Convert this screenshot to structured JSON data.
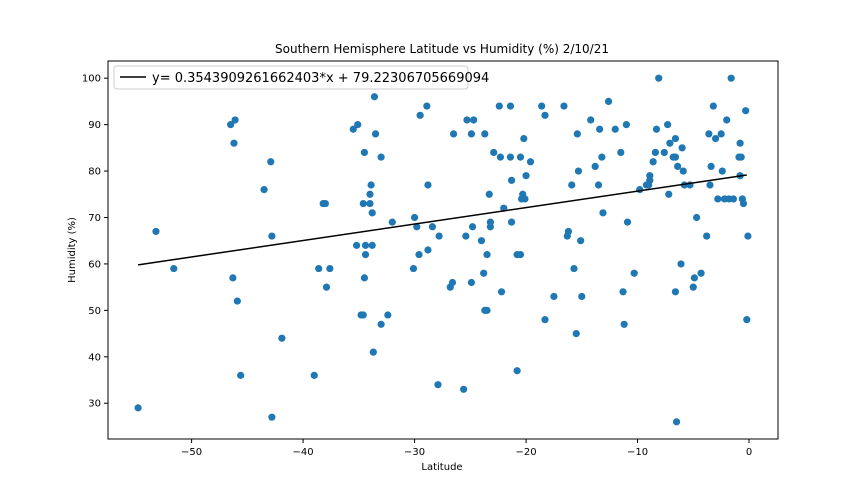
{
  "chart_data": {
    "type": "scatter",
    "title": "Southern Hemisphere Latitude vs Humidity (%) 2/10/21",
    "xlabel": "Latitude",
    "ylabel": "Humidity (%)",
    "xlim": [
      -57.5,
      2.6
    ],
    "ylim": [
      22.3,
      103.7
    ],
    "xticks": [
      -50,
      -40,
      -30,
      -20,
      -10,
      0
    ],
    "xtick_labels": [
      "−50",
      "−40",
      "−30",
      "−20",
      "−10",
      "0"
    ],
    "yticks": [
      30,
      40,
      50,
      60,
      70,
      80,
      90,
      100
    ],
    "ytick_labels": [
      "30",
      "40",
      "50",
      "60",
      "70",
      "80",
      "90",
      "100"
    ],
    "grid": false,
    "legend_position": "top-left",
    "marker_color": "#1f77b4",
    "line_color": "#000000",
    "regression": {
      "slope": 0.3543909261662403,
      "intercept": 79.22306705669094,
      "x_range": [
        -54.8,
        -0.2
      ],
      "label": "y= 0.3543909261662403*x + 79.22306705669094"
    },
    "points": [
      [
        -54.8,
        29
      ],
      [
        -53.2,
        67
      ],
      [
        -51.6,
        59
      ],
      [
        -46.5,
        90
      ],
      [
        -46.1,
        91
      ],
      [
        -46.2,
        86
      ],
      [
        -46.3,
        57
      ],
      [
        -45.9,
        52
      ],
      [
        -45.6,
        36
      ],
      [
        -43.5,
        76
      ],
      [
        -42.9,
        82
      ],
      [
        -42.8,
        66
      ],
      [
        -42.8,
        27
      ],
      [
        -41.9,
        44
      ],
      [
        -39.0,
        36
      ],
      [
        -38.6,
        59
      ],
      [
        -38.2,
        73
      ],
      [
        -38.0,
        73
      ],
      [
        -37.9,
        55
      ],
      [
        -37.6,
        59
      ],
      [
        -35.5,
        89
      ],
      [
        -35.1,
        90
      ],
      [
        -35.2,
        64
      ],
      [
        -34.8,
        49
      ],
      [
        -34.6,
        49
      ],
      [
        -34.6,
        73
      ],
      [
        -34.5,
        84
      ],
      [
        -34.5,
        57
      ],
      [
        -34.4,
        62
      ],
      [
        -34.4,
        64
      ],
      [
        -34.0,
        75
      ],
      [
        -34.0,
        73
      ],
      [
        -33.9,
        77
      ],
      [
        -33.8,
        71
      ],
      [
        -33.8,
        64
      ],
      [
        -33.7,
        41
      ],
      [
        -33.6,
        96
      ],
      [
        -33.5,
        88
      ],
      [
        -33.0,
        83
      ],
      [
        -33.0,
        47
      ],
      [
        -32.4,
        49
      ],
      [
        -32.0,
        69
      ],
      [
        -30.1,
        59
      ],
      [
        -30.0,
        70
      ],
      [
        -29.8,
        68
      ],
      [
        -29.6,
        62
      ],
      [
        -29.5,
        92
      ],
      [
        -28.9,
        94
      ],
      [
        -28.8,
        77
      ],
      [
        -28.8,
        63
      ],
      [
        -28.4,
        68
      ],
      [
        -27.9,
        34
      ],
      [
        -27.8,
        66
      ],
      [
        -26.8,
        55
      ],
      [
        -26.6,
        56
      ],
      [
        -26.5,
        88
      ],
      [
        -25.6,
        33
      ],
      [
        -25.4,
        66
      ],
      [
        -25.3,
        91
      ],
      [
        -24.9,
        56
      ],
      [
        -24.9,
        88
      ],
      [
        -24.8,
        68
      ],
      [
        -24.7,
        91
      ],
      [
        -24.0,
        65
      ],
      [
        -23.8,
        58
      ],
      [
        -23.7,
        88
      ],
      [
        -23.7,
        50
      ],
      [
        -23.5,
        50
      ],
      [
        -23.5,
        62
      ],
      [
        -23.3,
        75
      ],
      [
        -23.2,
        68
      ],
      [
        -23.2,
        69
      ],
      [
        -22.9,
        84
      ],
      [
        -22.4,
        94
      ],
      [
        -22.3,
        83
      ],
      [
        -22.2,
        54
      ],
      [
        -22.0,
        72
      ],
      [
        -21.4,
        94
      ],
      [
        -21.4,
        83
      ],
      [
        -21.3,
        78
      ],
      [
        -21.3,
        69
      ],
      [
        -20.8,
        37
      ],
      [
        -20.8,
        62
      ],
      [
        -20.5,
        83
      ],
      [
        -20.5,
        62
      ],
      [
        -20.4,
        74
      ],
      [
        -20.3,
        75
      ],
      [
        -20.2,
        87
      ],
      [
        -20.1,
        74
      ],
      [
        -20.0,
        79
      ],
      [
        -19.6,
        82
      ],
      [
        -18.6,
        94
      ],
      [
        -18.3,
        92
      ],
      [
        -18.3,
        48
      ],
      [
        -17.5,
        53
      ],
      [
        -16.6,
        94
      ],
      [
        -16.3,
        66
      ],
      [
        -16.2,
        67
      ],
      [
        -15.9,
        77
      ],
      [
        -15.7,
        59
      ],
      [
        -15.5,
        45
      ],
      [
        -15.4,
        88
      ],
      [
        -15.3,
        80
      ],
      [
        -15.1,
        65
      ],
      [
        -15.0,
        53
      ],
      [
        -14.2,
        91
      ],
      [
        -13.8,
        81
      ],
      [
        -13.5,
        77
      ],
      [
        -13.4,
        89
      ],
      [
        -13.2,
        83
      ],
      [
        -13.1,
        71
      ],
      [
        -12.6,
        95
      ],
      [
        -12.0,
        89
      ],
      [
        -11.5,
        84
      ],
      [
        -11.3,
        54
      ],
      [
        -11.2,
        47
      ],
      [
        -11.0,
        90
      ],
      [
        -10.9,
        69
      ],
      [
        -10.3,
        58
      ],
      [
        -9.8,
        76
      ],
      [
        -9.2,
        77
      ],
      [
        -9.0,
        77
      ],
      [
        -8.9,
        79
      ],
      [
        -8.9,
        78
      ],
      [
        -8.6,
        82
      ],
      [
        -8.4,
        84
      ],
      [
        -8.3,
        89
      ],
      [
        -8.1,
        100
      ],
      [
        -7.6,
        84
      ],
      [
        -7.3,
        90
      ],
      [
        -7.2,
        75
      ],
      [
        -7.1,
        86
      ],
      [
        -6.8,
        83
      ],
      [
        -6.6,
        87
      ],
      [
        -6.6,
        83
      ],
      [
        -6.6,
        54
      ],
      [
        -6.5,
        26
      ],
      [
        -6.4,
        81
      ],
      [
        -6.1,
        60
      ],
      [
        -6.0,
        85
      ],
      [
        -5.9,
        80
      ],
      [
        -5.8,
        77
      ],
      [
        -5.3,
        77
      ],
      [
        -5.0,
        55
      ],
      [
        -4.9,
        57
      ],
      [
        -4.7,
        70
      ],
      [
        -4.3,
        58
      ],
      [
        -3.8,
        66
      ],
      [
        -3.6,
        88
      ],
      [
        -3.5,
        77
      ],
      [
        -3.4,
        81
      ],
      [
        -3.2,
        94
      ],
      [
        -3.0,
        87
      ],
      [
        -2.8,
        74
      ],
      [
        -2.5,
        88
      ],
      [
        -2.4,
        80
      ],
      [
        -2.2,
        74
      ],
      [
        -2.0,
        91
      ],
      [
        -1.8,
        74
      ],
      [
        -1.6,
        100
      ],
      [
        -1.4,
        74
      ],
      [
        -0.9,
        83
      ],
      [
        -0.8,
        86
      ],
      [
        -0.8,
        79
      ],
      [
        -0.7,
        83
      ],
      [
        -0.6,
        74
      ],
      [
        -0.5,
        73
      ],
      [
        -0.3,
        93
      ],
      [
        -0.2,
        48
      ],
      [
        -0.1,
        66
      ]
    ]
  }
}
